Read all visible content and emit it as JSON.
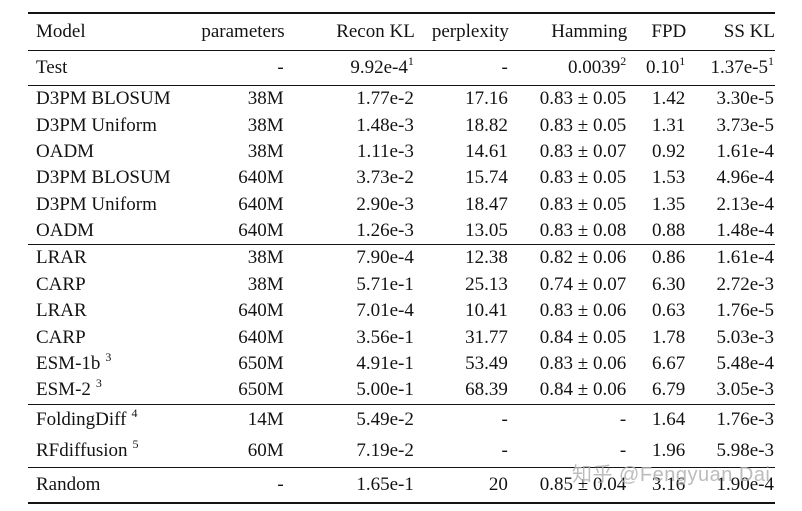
{
  "watermark": {
    "text": "知乎 @Fengyuan Dai"
  },
  "colors": {
    "background": "#ffffff",
    "text": "#131313",
    "rule": "#131313",
    "watermark": "#b0b0b0"
  },
  "table": {
    "headers": [
      "Model",
      "parameters",
      "Recon KL",
      "perplexity",
      "Hamming",
      "FPD",
      "SS KL"
    ],
    "groups": [
      {
        "name": "test",
        "rows": [
          {
            "cells": [
              {
                "v": "Test"
              },
              {
                "v": "-"
              },
              {
                "v": "9.92e-4",
                "s": "1"
              },
              {
                "v": "-"
              },
              {
                "v": "0.0039",
                "s": "2"
              },
              {
                "v": "0.10",
                "s": "1"
              },
              {
                "v": "1.37e-5",
                "s": "1"
              }
            ]
          }
        ]
      },
      {
        "name": "discrete-diffusion",
        "rows": [
          {
            "cells": [
              {
                "v": "D3PM BLOSUM"
              },
              {
                "v": "38M"
              },
              {
                "v": "1.77e-2"
              },
              {
                "v": "17.16"
              },
              {
                "v": "0.83 ± 0.05"
              },
              {
                "v": "1.42"
              },
              {
                "v": "3.30e-5"
              }
            ]
          },
          {
            "cells": [
              {
                "v": "D3PM Uniform"
              },
              {
                "v": "38M"
              },
              {
                "v": "1.48e-3"
              },
              {
                "v": "18.82"
              },
              {
                "v": "0.83 ± 0.05"
              },
              {
                "v": "1.31"
              },
              {
                "v": "3.73e-5"
              }
            ]
          },
          {
            "cells": [
              {
                "v": "OADM"
              },
              {
                "v": "38M"
              },
              {
                "v": "1.11e-3"
              },
              {
                "v": "14.61"
              },
              {
                "v": "0.83 ± 0.07"
              },
              {
                "v": "0.92"
              },
              {
                "v": "1.61e-4"
              }
            ]
          },
          {
            "cells": [
              {
                "v": "D3PM BLOSUM"
              },
              {
                "v": "640M"
              },
              {
                "v": "3.73e-2"
              },
              {
                "v": "15.74"
              },
              {
                "v": "0.83 ± 0.05"
              },
              {
                "v": "1.53"
              },
              {
                "v": "4.96e-4"
              }
            ]
          },
          {
            "cells": [
              {
                "v": "D3PM Uniform"
              },
              {
                "v": "640M"
              },
              {
                "v": "2.90e-3"
              },
              {
                "v": "18.47"
              },
              {
                "v": "0.83 ± 0.05"
              },
              {
                "v": "1.35"
              },
              {
                "v": "2.13e-4"
              }
            ]
          },
          {
            "cells": [
              {
                "v": "OADM"
              },
              {
                "v": "640M"
              },
              {
                "v": "1.26e-3"
              },
              {
                "v": "13.05"
              },
              {
                "v": "0.83 ± 0.08"
              },
              {
                "v": "0.88"
              },
              {
                "v": "1.48e-4"
              }
            ]
          }
        ]
      },
      {
        "name": "autoregressive-masked",
        "rows": [
          {
            "cells": [
              {
                "v": "LRAR"
              },
              {
                "v": "38M"
              },
              {
                "v": "7.90e-4"
              },
              {
                "v": "12.38"
              },
              {
                "v": "0.82 ± 0.06"
              },
              {
                "v": "0.86"
              },
              {
                "v": "1.61e-4"
              }
            ]
          },
          {
            "cells": [
              {
                "v": "CARP"
              },
              {
                "v": "38M"
              },
              {
                "v": "5.71e-1"
              },
              {
                "v": "25.13"
              },
              {
                "v": "0.74 ± 0.07"
              },
              {
                "v": "6.30"
              },
              {
                "v": "2.72e-3"
              }
            ]
          },
          {
            "cells": [
              {
                "v": "LRAR"
              },
              {
                "v": "640M"
              },
              {
                "v": "7.01e-4"
              },
              {
                "v": "10.41"
              },
              {
                "v": "0.83 ± 0.06"
              },
              {
                "v": "0.63"
              },
              {
                "v": "1.76e-5"
              }
            ]
          },
          {
            "cells": [
              {
                "v": "CARP"
              },
              {
                "v": "640M"
              },
              {
                "v": "3.56e-1"
              },
              {
                "v": "31.77"
              },
              {
                "v": "0.84 ± 0.05"
              },
              {
                "v": "1.78"
              },
              {
                "v": "5.03e-3"
              }
            ]
          },
          {
            "cells": [
              {
                "v": "ESM-1b",
                "s": "3"
              },
              {
                "v": "650M"
              },
              {
                "v": "4.91e-1"
              },
              {
                "v": "53.49"
              },
              {
                "v": "0.83 ± 0.06"
              },
              {
                "v": "6.67"
              },
              {
                "v": "5.48e-4"
              }
            ]
          },
          {
            "cells": [
              {
                "v": "ESM-2",
                "s": "3"
              },
              {
                "v": "650M"
              },
              {
                "v": "5.00e-1"
              },
              {
                "v": "68.39"
              },
              {
                "v": "0.84 ± 0.06"
              },
              {
                "v": "6.79"
              },
              {
                "v": "3.05e-3"
              }
            ]
          }
        ]
      },
      {
        "name": "structure-diffusion",
        "rows": [
          {
            "cells": [
              {
                "v": "FoldingDiff",
                "s": "4"
              },
              {
                "v": "14M"
              },
              {
                "v": "5.49e-2"
              },
              {
                "v": "-"
              },
              {
                "v": "-"
              },
              {
                "v": "1.64"
              },
              {
                "v": "1.76e-3"
              }
            ]
          },
          {
            "cells": [
              {
                "v": "RFdiffusion",
                "s": "5"
              },
              {
                "v": "60M"
              },
              {
                "v": "7.19e-2"
              },
              {
                "v": "-"
              },
              {
                "v": "-"
              },
              {
                "v": "1.96"
              },
              {
                "v": "5.98e-3"
              }
            ]
          }
        ]
      },
      {
        "name": "random",
        "rows": [
          {
            "cells": [
              {
                "v": "Random"
              },
              {
                "v": "-"
              },
              {
                "v": "1.65e-1"
              },
              {
                "v": "20"
              },
              {
                "v": "0.85 ± 0.04"
              },
              {
                "v": "3.16"
              },
              {
                "v": "1.90e-4"
              }
            ]
          }
        ]
      }
    ]
  }
}
